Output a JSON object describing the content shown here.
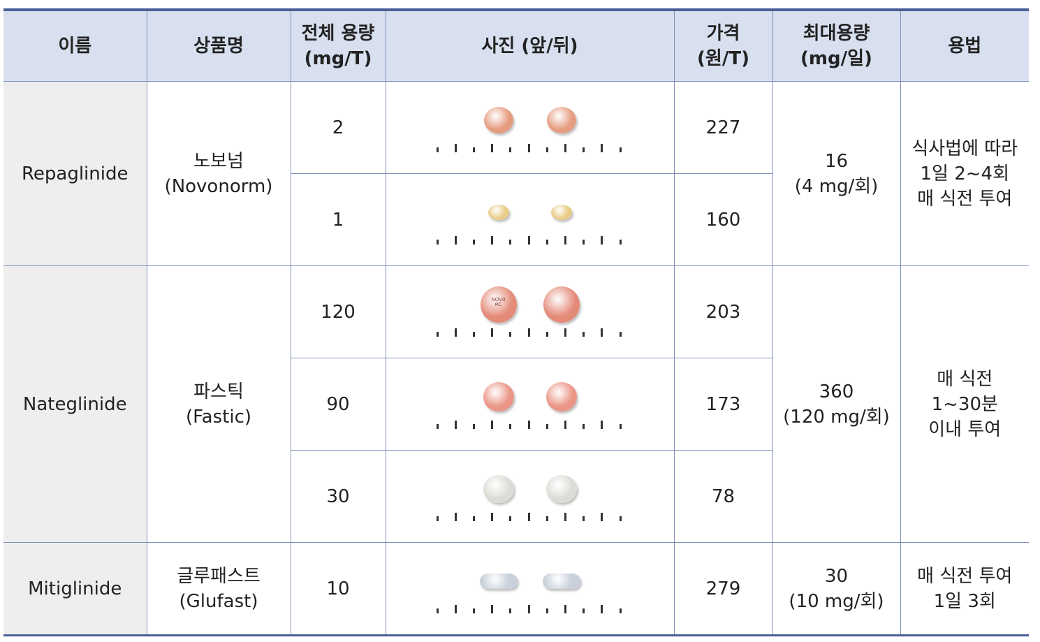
{
  "headers": {
    "name": "이름",
    "brand": "상품명",
    "dose": [
      "전체 용량",
      "(mg/T)"
    ],
    "photo": "사진 (앞/뒤)",
    "price": [
      "가격",
      "(원/T)"
    ],
    "max": [
      "최대용량",
      "(mg/일)"
    ],
    "usage": "용법"
  },
  "drugs": [
    {
      "name": "Repaglinide",
      "brand": [
        "노보넘",
        "(Novonorm)"
      ],
      "max": [
        "16",
        "(4 mg/회)"
      ],
      "usage": [
        "식사법에 따라",
        "1일 2~4회",
        "매 식전 투여"
      ],
      "rows": [
        {
          "dose": "2",
          "price": "227",
          "pill": {
            "shape": "round",
            "color": "#e69c80"
          }
        },
        {
          "dose": "1",
          "price": "160",
          "pill": {
            "shape": "round",
            "color": "#e8cc86"
          }
        }
      ]
    },
    {
      "name": "Nateglinide",
      "brand": [
        "파스틱",
        "(Fastic)"
      ],
      "max": [
        "360",
        "(120 mg/회)"
      ],
      "usage": [
        "매 식전",
        "1~30분",
        "이내 투여"
      ],
      "rows": [
        {
          "dose": "120",
          "price": "203",
          "pill": {
            "shape": "round",
            "color": "#e48a78"
          }
        },
        {
          "dose": "90",
          "price": "173",
          "pill": {
            "shape": "round",
            "color": "#ea9585"
          }
        },
        {
          "dose": "30",
          "price": "78",
          "pill": {
            "shape": "round",
            "color": "#dcdcd6"
          }
        }
      ]
    },
    {
      "name": "Mitiglinide",
      "brand": [
        "글루패스트",
        "(Glufast)"
      ],
      "max": [
        "30",
        "(10 mg/회)"
      ],
      "usage": [
        "매 식전 투여",
        "1일 3회"
      ],
      "rows": [
        {
          "dose": "10",
          "price": "279",
          "pill": {
            "shape": "oblong",
            "color": "#c9d1dc"
          }
        }
      ]
    }
  ],
  "imprint": "NOV0 RC"
}
